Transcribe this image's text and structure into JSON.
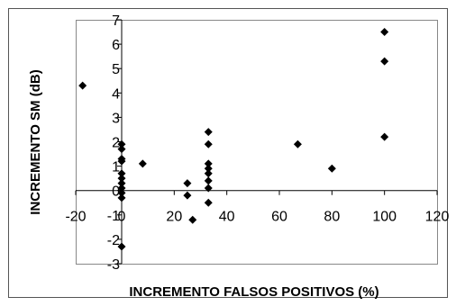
{
  "chart_data": {
    "type": "scatter",
    "title": "",
    "xlabel": "INCREMENTO FALSOS POSITIVOS (%)",
    "ylabel": "INCREMENTO SM (dB)",
    "xlim": [
      -20,
      120
    ],
    "ylim": [
      -3,
      7
    ],
    "x_ticks": [
      -20,
      0,
      20,
      40,
      60,
      80,
      100,
      120
    ],
    "y_ticks": [
      -3,
      -2,
      -1,
      0,
      1,
      2,
      3,
      4,
      5,
      6,
      7
    ],
    "x_tick_labels": [
      "-20",
      "0",
      "20",
      "40",
      "60",
      "80",
      "100",
      "120"
    ],
    "y_tick_labels": [
      "-3",
      "-2",
      "-1",
      "0",
      "1",
      "2",
      "3",
      "4",
      "5",
      "6",
      "7"
    ],
    "grid": false,
    "legend": "none",
    "marker": "diamond",
    "marker_color": "#000000",
    "points": [
      {
        "x": -17,
        "y": 4.3
      },
      {
        "x": 0,
        "y": 1.9
      },
      {
        "x": 0,
        "y": 1.7
      },
      {
        "x": 0,
        "y": 1.3
      },
      {
        "x": 0,
        "y": 1.2
      },
      {
        "x": 0,
        "y": 0.7
      },
      {
        "x": 0,
        "y": 0.5
      },
      {
        "x": 0,
        "y": 0.3
      },
      {
        "x": 0,
        "y": 0.1
      },
      {
        "x": 0,
        "y": -0.1
      },
      {
        "x": 0,
        "y": -0.3
      },
      {
        "x": 0,
        "y": -2.3
      },
      {
        "x": 8,
        "y": 1.1
      },
      {
        "x": 25,
        "y": 0.3
      },
      {
        "x": 25,
        "y": -0.2
      },
      {
        "x": 27,
        "y": -1.2
      },
      {
        "x": 33,
        "y": 2.4
      },
      {
        "x": 33,
        "y": 1.9
      },
      {
        "x": 33,
        "y": 1.1
      },
      {
        "x": 33,
        "y": 0.9
      },
      {
        "x": 33,
        "y": 0.7
      },
      {
        "x": 33,
        "y": 0.4
      },
      {
        "x": 33,
        "y": 0.1
      },
      {
        "x": 33,
        "y": -0.5
      },
      {
        "x": 67,
        "y": 1.9
      },
      {
        "x": 80,
        "y": 0.9
      },
      {
        "x": 100,
        "y": 6.5
      },
      {
        "x": 100,
        "y": 5.3
      },
      {
        "x": 100,
        "y": 2.2
      }
    ]
  }
}
